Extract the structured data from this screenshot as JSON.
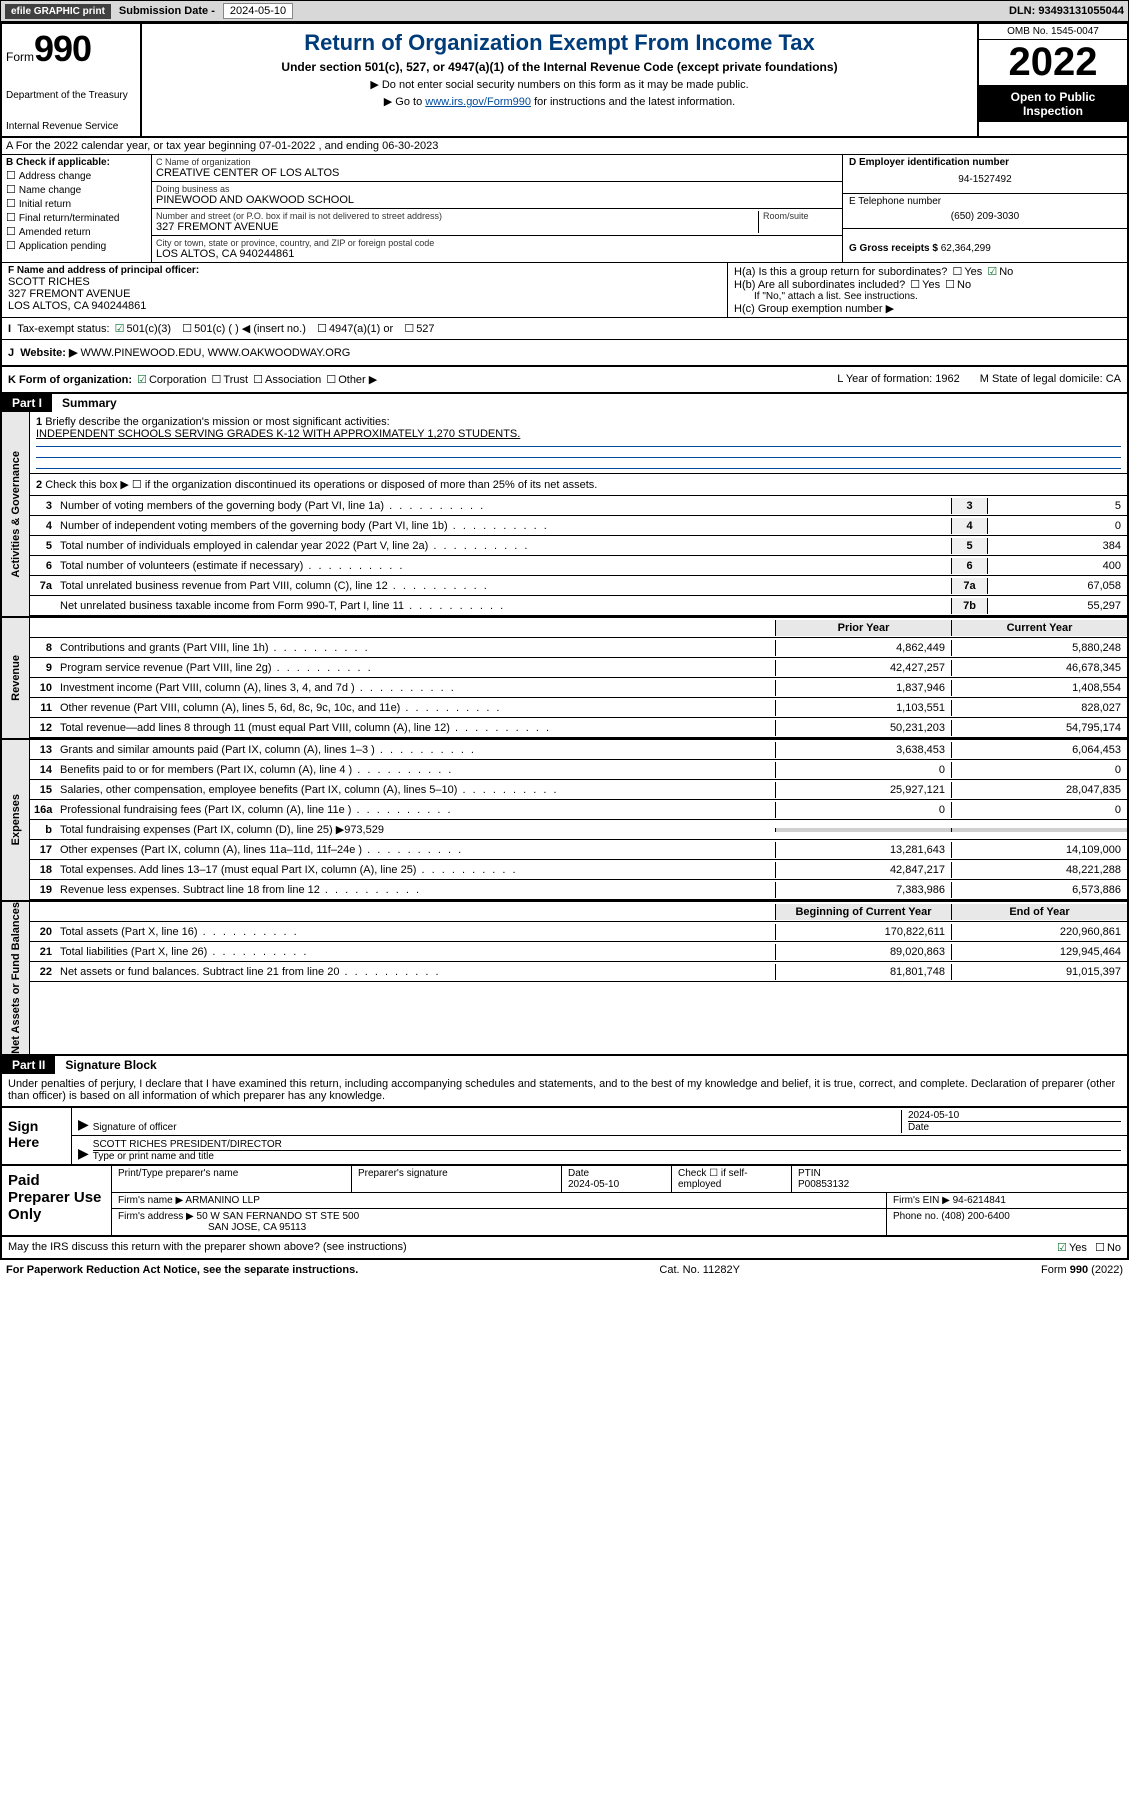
{
  "topbar": {
    "efile": "efile GRAPHIC print",
    "subLabel": "Submission Date - 2024-05-10",
    "dln": "DLN: 93493131055044"
  },
  "header": {
    "formWord": "Form",
    "formNum": "990",
    "dept": "Department of the Treasury",
    "irs": "Internal Revenue Service",
    "title": "Return of Organization Exempt From Income Tax",
    "sub": "Under section 501(c), 527, or 4947(a)(1) of the Internal Revenue Code (except private foundations)",
    "note1": "▶ Do not enter social security numbers on this form as it may be made public.",
    "note2": "▶ Go to ",
    "link": "www.irs.gov/Form990",
    "note2b": " for instructions and the latest information.",
    "omb": "OMB No. 1545-0047",
    "year": "2022",
    "otp": "Open to Public Inspection"
  },
  "rowA": "A For the 2022 calendar year, or tax year beginning 07-01-2022  , and ending 06-30-2023",
  "colB": {
    "label": "B Check if applicable:",
    "opts": [
      "Address change",
      "Name change",
      "Initial return",
      "Final return/terminated",
      "Amended return",
      "Application pending"
    ]
  },
  "colC": {
    "nameLbl": "C Name of organization",
    "name": "CREATIVE CENTER OF LOS ALTOS",
    "dbaLbl": "Doing business as",
    "dba": "PINEWOOD AND OAKWOOD SCHOOL",
    "addrLbl": "Number and street (or P.O. box if mail is not delivered to street address)",
    "roomLbl": "Room/suite",
    "addr": "327 FREMONT AVENUE",
    "cityLbl": "City or town, state or province, country, and ZIP or foreign postal code",
    "city": "LOS ALTOS, CA  940244861"
  },
  "colR": {
    "einLbl": "D Employer identification number",
    "ein": "94-1527492",
    "telLbl": "E Telephone number",
    "tel": "(650) 209-3030",
    "grossLbl": "G Gross receipts $",
    "gross": "62,364,299"
  },
  "rowF": {
    "lblF": "F Name and address of principal officer:",
    "off1": "SCOTT RICHES",
    "off2": "327 FREMONT AVENUE",
    "off3": "LOS ALTOS, CA  940244861",
    "Ha": "H(a)  Is this a group return for subordinates?",
    "Hb": "H(b)  Are all subordinates included?",
    "HbNote": "If \"No,\" attach a list. See instructions.",
    "Hc": "H(c)  Group exemption number ▶"
  },
  "rowI": {
    "lbl": "Tax-exempt status:",
    "o1": "501(c)(3)",
    "o2": "501(c) (  ) ◀ (insert no.)",
    "o3": "4947(a)(1) or",
    "o4": "527"
  },
  "rowJ": {
    "lbl": "J",
    "web": "Website: ▶",
    "url": "WWW.PINEWOOD.EDU, WWW.OAKWOODWAY.ORG"
  },
  "rowK": {
    "k1": "K Form of organization:",
    "corp": "Corporation",
    "trust": "Trust",
    "assoc": "Association",
    "other": "Other ▶",
    "L": "L Year of formation: 1962",
    "M": "M State of legal domicile: CA"
  },
  "part1": {
    "label": "Part I",
    "title": "Summary"
  },
  "sections": {
    "ag": "Activities & Governance",
    "rev": "Revenue",
    "exp": "Expenses",
    "na": "Net Assets or Fund Balances"
  },
  "q1": {
    "num": "1",
    "text": "Briefly describe the organization's mission or most significant activities:",
    "mission": "INDEPENDENT SCHOOLS SERVING GRADES K-12 WITH APPROXIMATELY 1,270 STUDENTS."
  },
  "q2": {
    "num": "2",
    "text": "Check this box ▶ ☐ if the organization discontinued its operations or disposed of more than 25% of its net assets."
  },
  "lines37": [
    {
      "n": "3",
      "d": "Number of voting members of the governing body (Part VI, line 1a)",
      "b": "3",
      "v": "5"
    },
    {
      "n": "4",
      "d": "Number of independent voting members of the governing body (Part VI, line 1b)",
      "b": "4",
      "v": "0"
    },
    {
      "n": "5",
      "d": "Total number of individuals employed in calendar year 2022 (Part V, line 2a)",
      "b": "5",
      "v": "384"
    },
    {
      "n": "6",
      "d": "Total number of volunteers (estimate if necessary)",
      "b": "6",
      "v": "400"
    },
    {
      "n": "7a",
      "d": "Total unrelated business revenue from Part VIII, column (C), line 12",
      "b": "7a",
      "v": "67,058"
    },
    {
      "n": "",
      "d": "Net unrelated business taxable income from Form 990-T, Part I, line 11",
      "b": "7b",
      "v": "55,297"
    }
  ],
  "yrcols": {
    "prior": "Prior Year",
    "curr": "Current Year"
  },
  "revRows": [
    {
      "n": "8",
      "d": "Contributions and grants (Part VIII, line 1h)",
      "p": "4,862,449",
      "c": "5,880,248"
    },
    {
      "n": "9",
      "d": "Program service revenue (Part VIII, line 2g)",
      "p": "42,427,257",
      "c": "46,678,345"
    },
    {
      "n": "10",
      "d": "Investment income (Part VIII, column (A), lines 3, 4, and 7d )",
      "p": "1,837,946",
      "c": "1,408,554"
    },
    {
      "n": "11",
      "d": "Other revenue (Part VIII, column (A), lines 5, 6d, 8c, 9c, 10c, and 11e)",
      "p": "1,103,551",
      "c": "828,027"
    },
    {
      "n": "12",
      "d": "Total revenue—add lines 8 through 11 (must equal Part VIII, column (A), line 12)",
      "p": "50,231,203",
      "c": "54,795,174"
    }
  ],
  "expRows": [
    {
      "n": "13",
      "d": "Grants and similar amounts paid (Part IX, column (A), lines 1–3 )",
      "p": "3,638,453",
      "c": "6,064,453"
    },
    {
      "n": "14",
      "d": "Benefits paid to or for members (Part IX, column (A), line 4 )",
      "p": "0",
      "c": "0"
    },
    {
      "n": "15",
      "d": "Salaries, other compensation, employee benefits (Part IX, column (A), lines 5–10)",
      "p": "25,927,121",
      "c": "28,047,835"
    },
    {
      "n": "16a",
      "d": "Professional fundraising fees (Part IX, column (A), line 11e )",
      "p": "0",
      "c": "0"
    }
  ],
  "exp16b": {
    "n": "b",
    "d": "Total fundraising expenses (Part IX, column (D), line 25) ▶973,529"
  },
  "expRows2": [
    {
      "n": "17",
      "d": "Other expenses (Part IX, column (A), lines 11a–11d, 11f–24e )",
      "p": "13,281,643",
      "c": "14,109,000"
    },
    {
      "n": "18",
      "d": "Total expenses. Add lines 13–17 (must equal Part IX, column (A), line 25)",
      "p": "42,847,217",
      "c": "48,221,288"
    },
    {
      "n": "19",
      "d": "Revenue less expenses. Subtract line 18 from line 12",
      "p": "7,383,986",
      "c": "6,573,886"
    }
  ],
  "nacols": {
    "beg": "Beginning of Current Year",
    "end": "End of Year"
  },
  "naRows": [
    {
      "n": "20",
      "d": "Total assets (Part X, line 16)",
      "p": "170,822,611",
      "c": "220,960,861"
    },
    {
      "n": "21",
      "d": "Total liabilities (Part X, line 26)",
      "p": "89,020,863",
      "c": "129,945,464"
    },
    {
      "n": "22",
      "d": "Net assets or fund balances. Subtract line 21 from line 20",
      "p": "81,801,748",
      "c": "91,015,397"
    }
  ],
  "part2": {
    "label": "Part II",
    "title": "Signature Block"
  },
  "sigtext": "Under penalties of perjury, I declare that I have examined this return, including accompanying schedules and statements, and to the best of my knowledge and belief, it is true, correct, and complete. Declaration of preparer (other than officer) is based on all information of which preparer has any knowledge.",
  "sign": {
    "here": "Sign Here",
    "sigoff": "Signature of officer",
    "date": "2024-05-10",
    "dateLbl": "Date",
    "name": "SCOTT RICHES  PRESIDENT/DIRECTOR",
    "nameLbl": "Type or print name and title"
  },
  "paid": {
    "label": "Paid Preparer Use Only",
    "h1": "Print/Type preparer's name",
    "h2": "Preparer's signature",
    "h3": "Date",
    "h3v": "2024-05-10",
    "h4": "Check ☐ if self-employed",
    "h5": "PTIN",
    "h5v": "P00853132",
    "firmNameLbl": "Firm's name      ▶",
    "firmName": "ARMANINO LLP",
    "firmEinLbl": "Firm's EIN ▶",
    "firmEin": "94-6214841",
    "firmAddrLbl": "Firm's address ▶",
    "firmAddr": "50 W SAN FERNANDO ST STE 500",
    "firmCity": "SAN JOSE, CA  95113",
    "phoneLbl": "Phone no.",
    "phone": "(408) 200-6400"
  },
  "footer": {
    "may": "May the IRS discuss this return with the preparer shown above? (see instructions)",
    "yes": "Yes",
    "no": "No",
    "pra": "For Paperwork Reduction Act Notice, see the separate instructions.",
    "cat": "Cat. No. 11282Y",
    "form": "Form 990 (2022)"
  }
}
